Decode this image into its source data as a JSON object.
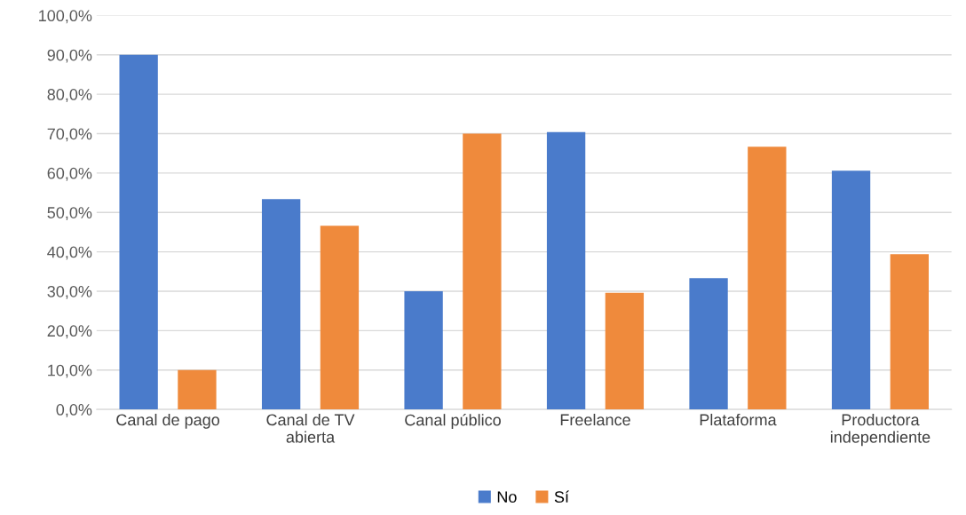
{
  "chart_data": {
    "type": "bar",
    "categories": [
      "Canal de pago",
      "Canal de TV\nabierta",
      "Canal público",
      "Freelance",
      "Plataforma",
      "Productora\nindependiente"
    ],
    "series": [
      {
        "name": "No",
        "color": "#4a7bcb",
        "values": [
          90.0,
          53.4,
          30.0,
          70.4,
          33.3,
          60.6
        ]
      },
      {
        "name": "Sí",
        "color": "#ef8a3c",
        "values": [
          10.0,
          46.6,
          70.0,
          29.6,
          66.7,
          39.4
        ]
      }
    ],
    "ylim": [
      0,
      100
    ],
    "yticks": [
      {
        "value": 0,
        "label": "0,0%"
      },
      {
        "value": 10,
        "label": "10,0%"
      },
      {
        "value": 20,
        "label": "20,0%"
      },
      {
        "value": 30,
        "label": "30,0%"
      },
      {
        "value": 40,
        "label": "40,0%"
      },
      {
        "value": 50,
        "label": "50,0%"
      },
      {
        "value": 60,
        "label": "60,0%"
      },
      {
        "value": 70,
        "label": "70,0%"
      },
      {
        "value": 80,
        "label": "80,0%"
      },
      {
        "value": 90,
        "label": "90,0%"
      },
      {
        "value": 100,
        "label": "100,0%"
      }
    ],
    "grid": "y",
    "legend": "bottom"
  }
}
